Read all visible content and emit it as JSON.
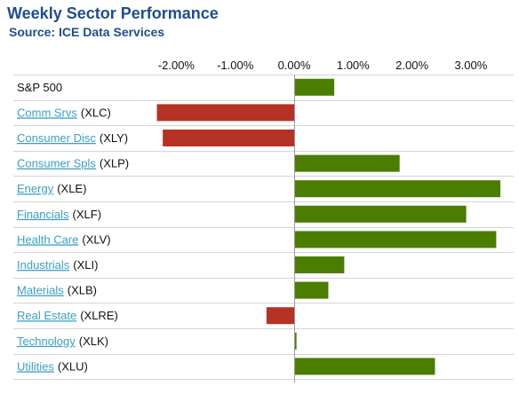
{
  "header": {
    "title": "Weekly Sector Performance",
    "source": "Source: ICE Data Services"
  },
  "chart_data": {
    "type": "bar",
    "orientation": "horizontal",
    "title": "Weekly Sector Performance",
    "subtitle": "Source: ICE Data Services",
    "xlim": [
      -2.5,
      3.5
    ],
    "xticks": [
      -2,
      -1,
      0,
      1,
      2,
      3
    ],
    "xtick_labels": [
      "-2.00%",
      "-1.00%",
      "0.00%",
      "1.00%",
      "2.00%",
      "3.00%"
    ],
    "colors": {
      "positive": "#4a7d00",
      "negative": "#b53225"
    },
    "categories": [
      {
        "name": "S&P 500",
        "ticker": "",
        "link": false,
        "value": 0.68
      },
      {
        "name": "Comm Srvs",
        "ticker": "(XLC)",
        "link": true,
        "value": -2.33
      },
      {
        "name": "Consumer Disc",
        "ticker": "(XLY)",
        "link": true,
        "value": -2.23
      },
      {
        "name": "Consumer Spls",
        "ticker": "(XLP)",
        "link": true,
        "value": 1.79
      },
      {
        "name": "Energy",
        "ticker": "(XLE)",
        "link": true,
        "value": 3.5
      },
      {
        "name": "Financials",
        "ticker": "(XLF)",
        "link": true,
        "value": 2.92
      },
      {
        "name": "Health Care",
        "ticker": "(XLV)",
        "link": true,
        "value": 3.43
      },
      {
        "name": "Industrials",
        "ticker": "(XLI)",
        "link": true,
        "value": 0.85
      },
      {
        "name": "Materials",
        "ticker": "(XLB)",
        "link": true,
        "value": 0.58
      },
      {
        "name": "Real Estate",
        "ticker": "(XLRE)",
        "link": true,
        "value": -0.47
      },
      {
        "name": "Technology",
        "ticker": "(XLK)",
        "link": true,
        "value": 0.04
      },
      {
        "name": "Utilities",
        "ticker": "(XLU)",
        "link": true,
        "value": 2.39
      }
    ]
  }
}
